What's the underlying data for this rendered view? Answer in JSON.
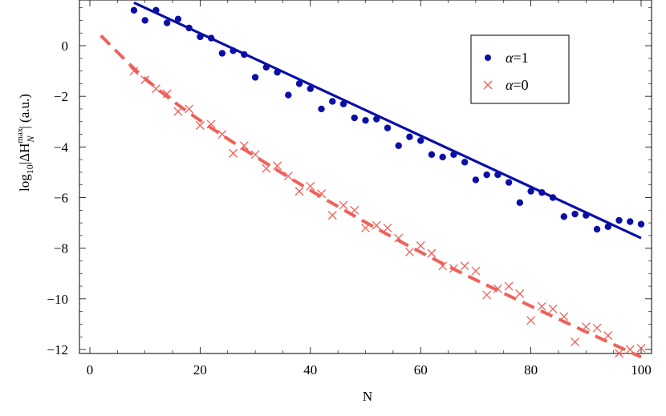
{
  "chart_data": {
    "type": "scatter",
    "xlabel": "N",
    "ylabel": {
      "prefix": "log",
      "sub10": "10",
      "mid": "|ΔH",
      "sup": "max",
      "subN": "N",
      "suffix": "| (a.u.)"
    },
    "xlim": [
      0,
      100
    ],
    "ylim": [
      -12.2,
      1.7
    ],
    "xticks": [
      0,
      20,
      40,
      60,
      80,
      100
    ],
    "yticks": [
      0,
      -2,
      -4,
      -6,
      -8,
      -10,
      -12
    ],
    "x_tick_labels": [
      "0",
      "20",
      "40",
      "60",
      "80",
      "100"
    ],
    "y_tick_labels": [
      "0",
      "−2",
      "−4",
      "−6",
      "−8",
      "−10",
      "−12"
    ],
    "legend_position": "top-right",
    "series": [
      {
        "name": "α=1",
        "label_symbol": "α",
        "label_value": "=1",
        "marker": "dot",
        "color": "#0b0ea6",
        "points": [
          [
            8,
            1.4
          ],
          [
            10,
            1.0
          ],
          [
            12,
            1.4
          ],
          [
            14,
            0.9
          ],
          [
            16,
            1.05
          ],
          [
            18,
            0.7
          ],
          [
            20,
            0.35
          ],
          [
            22,
            0.3
          ],
          [
            24,
            -0.3
          ],
          [
            26,
            -0.2
          ],
          [
            28,
            -0.35
          ],
          [
            30,
            -1.25
          ],
          [
            32,
            -0.85
          ],
          [
            34,
            -1.05
          ],
          [
            36,
            -1.95
          ],
          [
            38,
            -1.5
          ],
          [
            40,
            -1.7
          ],
          [
            42,
            -2.5
          ],
          [
            44,
            -2.2
          ],
          [
            46,
            -2.3
          ],
          [
            48,
            -2.85
          ],
          [
            50,
            -2.95
          ],
          [
            52,
            -2.9
          ],
          [
            54,
            -3.25
          ],
          [
            56,
            -3.95
          ],
          [
            58,
            -3.6
          ],
          [
            60,
            -3.75
          ],
          [
            62,
            -4.3
          ],
          [
            64,
            -4.4
          ],
          [
            66,
            -4.3
          ],
          [
            68,
            -4.6
          ],
          [
            70,
            -5.3
          ],
          [
            72,
            -5.1
          ],
          [
            74,
            -5.1
          ],
          [
            76,
            -5.4
          ],
          [
            78,
            -6.2
          ],
          [
            80,
            -5.75
          ],
          [
            82,
            -5.8
          ],
          [
            84,
            -6.0
          ],
          [
            86,
            -6.75
          ],
          [
            88,
            -6.65
          ],
          [
            90,
            -6.7
          ],
          [
            92,
            -7.25
          ],
          [
            94,
            -7.15
          ],
          [
            96,
            -6.9
          ],
          [
            98,
            -6.95
          ],
          [
            100,
            -7.05
          ]
        ],
        "fit": {
          "style": "solid",
          "x_start": 8,
          "x_end": 100,
          "y_start": 1.7,
          "y_end": -7.6
        }
      },
      {
        "name": "α=0",
        "label_symbol": "α",
        "label_value": "=0",
        "marker": "cross",
        "color": "#f0605a",
        "points": [
          [
            8,
            -1.0
          ],
          [
            10,
            -1.35
          ],
          [
            12,
            -1.7
          ],
          [
            14,
            -1.9
          ],
          [
            16,
            -2.6
          ],
          [
            18,
            -2.5
          ],
          [
            20,
            -3.15
          ],
          [
            22,
            -3.1
          ],
          [
            24,
            -3.5
          ],
          [
            26,
            -4.25
          ],
          [
            28,
            -3.95
          ],
          [
            30,
            -4.3
          ],
          [
            32,
            -4.85
          ],
          [
            34,
            -4.75
          ],
          [
            36,
            -5.15
          ],
          [
            38,
            -5.75
          ],
          [
            40,
            -5.55
          ],
          [
            42,
            -5.85
          ],
          [
            44,
            -6.7
          ],
          [
            46,
            -6.3
          ],
          [
            48,
            -6.5
          ],
          [
            50,
            -7.2
          ],
          [
            52,
            -7.1
          ],
          [
            54,
            -7.2
          ],
          [
            56,
            -7.6
          ],
          [
            58,
            -8.15
          ],
          [
            60,
            -7.9
          ],
          [
            62,
            -8.2
          ],
          [
            64,
            -8.7
          ],
          [
            66,
            -8.8
          ],
          [
            68,
            -8.7
          ],
          [
            70,
            -8.9
          ],
          [
            72,
            -9.85
          ],
          [
            74,
            -9.6
          ],
          [
            76,
            -9.5
          ],
          [
            78,
            -9.8
          ],
          [
            80,
            -10.85
          ],
          [
            82,
            -10.3
          ],
          [
            84,
            -10.4
          ],
          [
            86,
            -10.7
          ],
          [
            88,
            -11.7
          ],
          [
            90,
            -11.1
          ],
          [
            92,
            -11.15
          ],
          [
            94,
            -11.45
          ],
          [
            96,
            -12.15
          ],
          [
            98,
            -12.0
          ],
          [
            100,
            -11.95
          ]
        ],
        "fit": {
          "style": "dashed",
          "x_start": 2,
          "x_end": 100,
          "curve": [
            [
              2,
              0.4
            ],
            [
              10,
              -1.35
            ],
            [
              20,
              -3.0
            ],
            [
              40,
              -5.75
            ],
            [
              60,
              -8.2
            ],
            [
              80,
              -10.3
            ],
            [
              100,
              -12.3
            ]
          ]
        }
      }
    ]
  }
}
